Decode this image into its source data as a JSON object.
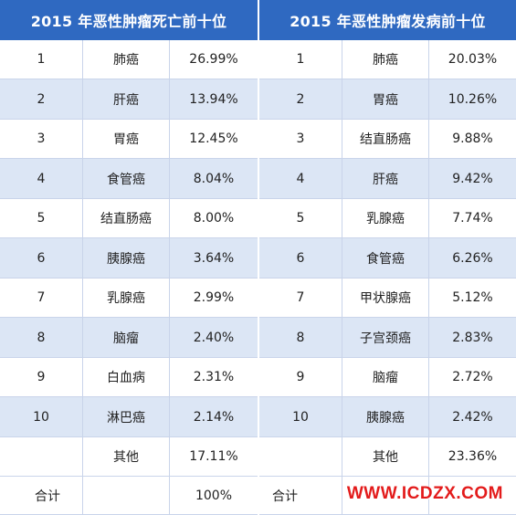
{
  "mortality": {
    "title": "2015 年恶性肿瘤死亡前十位",
    "rows": [
      {
        "rank": "1",
        "name": "肺癌",
        "pct": "26.99%"
      },
      {
        "rank": "2",
        "name": "肝癌",
        "pct": "13.94%"
      },
      {
        "rank": "3",
        "name": "胃癌",
        "pct": "12.45%"
      },
      {
        "rank": "4",
        "name": "食管癌",
        "pct": "8.04%"
      },
      {
        "rank": "5",
        "name": "结直肠癌",
        "pct": "8.00%"
      },
      {
        "rank": "6",
        "name": "胰腺癌",
        "pct": "3.64%"
      },
      {
        "rank": "7",
        "name": "乳腺癌",
        "pct": "2.99%"
      },
      {
        "rank": "8",
        "name": "脑瘤",
        "pct": "2.40%"
      },
      {
        "rank": "9",
        "name": "白血病",
        "pct": "2.31%"
      },
      {
        "rank": "10",
        "name": "淋巴癌",
        "pct": "2.14%"
      },
      {
        "rank": "",
        "name": "其他",
        "pct": "17.11%"
      }
    ],
    "total": {
      "label": "合计",
      "name": "",
      "pct": "100%"
    }
  },
  "incidence": {
    "title": "2015 年恶性肿瘤发病前十位",
    "rows": [
      {
        "rank": "1",
        "name": "肺癌",
        "pct": "20.03%"
      },
      {
        "rank": "2",
        "name": "胃癌",
        "pct": "10.26%"
      },
      {
        "rank": "3",
        "name": "结直肠癌",
        "pct": "9.88%"
      },
      {
        "rank": "4",
        "name": "肝癌",
        "pct": "9.42%"
      },
      {
        "rank": "5",
        "name": "乳腺癌",
        "pct": "7.74%"
      },
      {
        "rank": "6",
        "name": "食管癌",
        "pct": "6.26%"
      },
      {
        "rank": "7",
        "name": "甲状腺癌",
        "pct": "5.12%"
      },
      {
        "rank": "8",
        "name": "子宫颈癌",
        "pct": "2.83%"
      },
      {
        "rank": "9",
        "name": "脑瘤",
        "pct": "2.72%"
      },
      {
        "rank": "10",
        "name": "胰腺癌",
        "pct": "2.42%"
      },
      {
        "rank": "",
        "name": "其他",
        "pct": "23.36%"
      }
    ],
    "total": {
      "label": "合计",
      "name": "",
      "pct": ""
    }
  },
  "watermark": "WWW.ICDZX.COM",
  "colors": {
    "header": "#2f69c1",
    "alt_row": "#dce6f5",
    "watermark": "#e31b1b"
  }
}
